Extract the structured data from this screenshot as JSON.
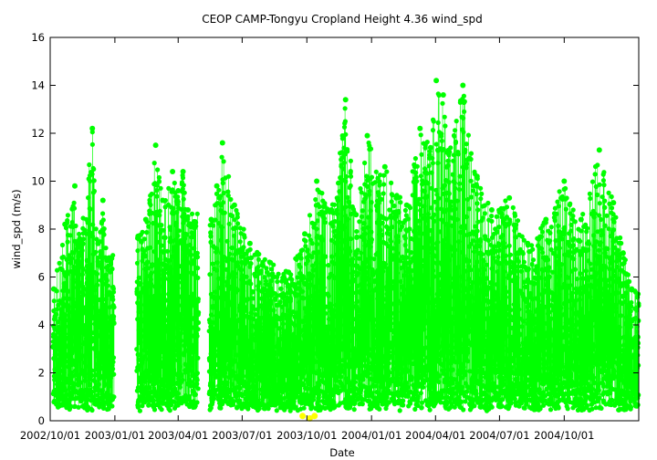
{
  "chart_data": {
    "type": "scatter",
    "title": "CEOP CAMP-Tongyu Cropland Height 4.36 wind_spd",
    "xlabel": "Date",
    "ylabel": "wind_spd (m/s)",
    "ylim": [
      0,
      16
    ],
    "xlim": [
      "2002-10-01",
      "2005-01-15"
    ],
    "yticks": [
      0,
      2,
      4,
      6,
      8,
      10,
      12,
      14,
      16
    ],
    "xticks": [
      {
        "date": "2002-10-01",
        "label": "2002/10/01"
      },
      {
        "date": "2003-01-01",
        "label": "2003/01/01"
      },
      {
        "date": "2003-04-01",
        "label": "2003/04/01"
      },
      {
        "date": "2003-07-01",
        "label": "2003/07/01"
      },
      {
        "date": "2003-10-01",
        "label": "2003/10/01"
      },
      {
        "date": "2004-01-01",
        "label": "2004/01/01"
      },
      {
        "date": "2004-04-01",
        "label": "2004/04/01"
      },
      {
        "date": "2004-07-01",
        "label": "2004/07/01"
      },
      {
        "date": "2004-10-01",
        "label": "2004/10/01"
      }
    ],
    "grid": false,
    "legend": "none",
    "series": [
      {
        "color": "#00ff00",
        "style": "points-with-thin-lines",
        "segments": [
          {
            "start": "2002-10-05",
            "end": "2002-12-31"
          },
          {
            "start": "2003-02-01",
            "end": "2003-04-30"
          },
          {
            "start": "2003-05-15",
            "end": "2005-01-15"
          }
        ],
        "x": [
          "2002-10-06",
          "2002-10-22",
          "2002-11-05",
          "2002-11-12",
          "2002-11-30",
          "2002-12-08",
          "2002-12-15",
          "2002-12-24",
          "2003-02-03",
          "2003-02-14",
          "2003-02-28",
          "2003-03-10",
          "2003-03-24",
          "2003-04-01",
          "2003-04-08",
          "2003-04-15",
          "2003-05-18",
          "2003-05-26",
          "2003-06-03",
          "2003-06-20",
          "2003-07-12",
          "2003-08-10",
          "2003-09-05",
          "2003-09-28",
          "2003-10-15",
          "2003-11-05",
          "2003-11-25",
          "2003-12-10",
          "2003-12-26",
          "2004-01-20",
          "2004-02-20",
          "2004-03-10",
          "2004-03-25",
          "2004-04-02",
          "2004-04-12",
          "2004-04-18",
          "2004-05-10",
          "2004-05-30",
          "2004-06-20",
          "2004-07-15",
          "2004-08-10",
          "2004-09-05",
          "2004-10-01",
          "2004-10-25",
          "2004-11-20",
          "2004-12-10",
          "2005-01-05"
        ],
        "y": [
          5.5,
          8.2,
          9.8,
          7.6,
          12.2,
          7.4,
          9.2,
          6.8,
          7.7,
          8.4,
          11.5,
          9.2,
          10.4,
          9.6,
          10.4,
          8.8,
          8.4,
          9.8,
          11.6,
          9.0,
          7.4,
          6.6,
          6.2,
          7.8,
          10.0,
          8.8,
          13.4,
          8.6,
          11.9,
          10.6,
          9.0,
          12.2,
          11.4,
          14.2,
          13.6,
          11.2,
          14.0,
          10.2,
          8.8,
          9.3,
          7.4,
          8.4,
          10.0,
          8.4,
          11.3,
          9.1,
          5.5
        ]
      },
      {
        "color": "#ffff00",
        "style": "points",
        "x": [
          "2003-09-25",
          "2003-10-05",
          "2003-10-12"
        ],
        "y": [
          0.2,
          0.1,
          0.2
        ]
      }
    ]
  }
}
